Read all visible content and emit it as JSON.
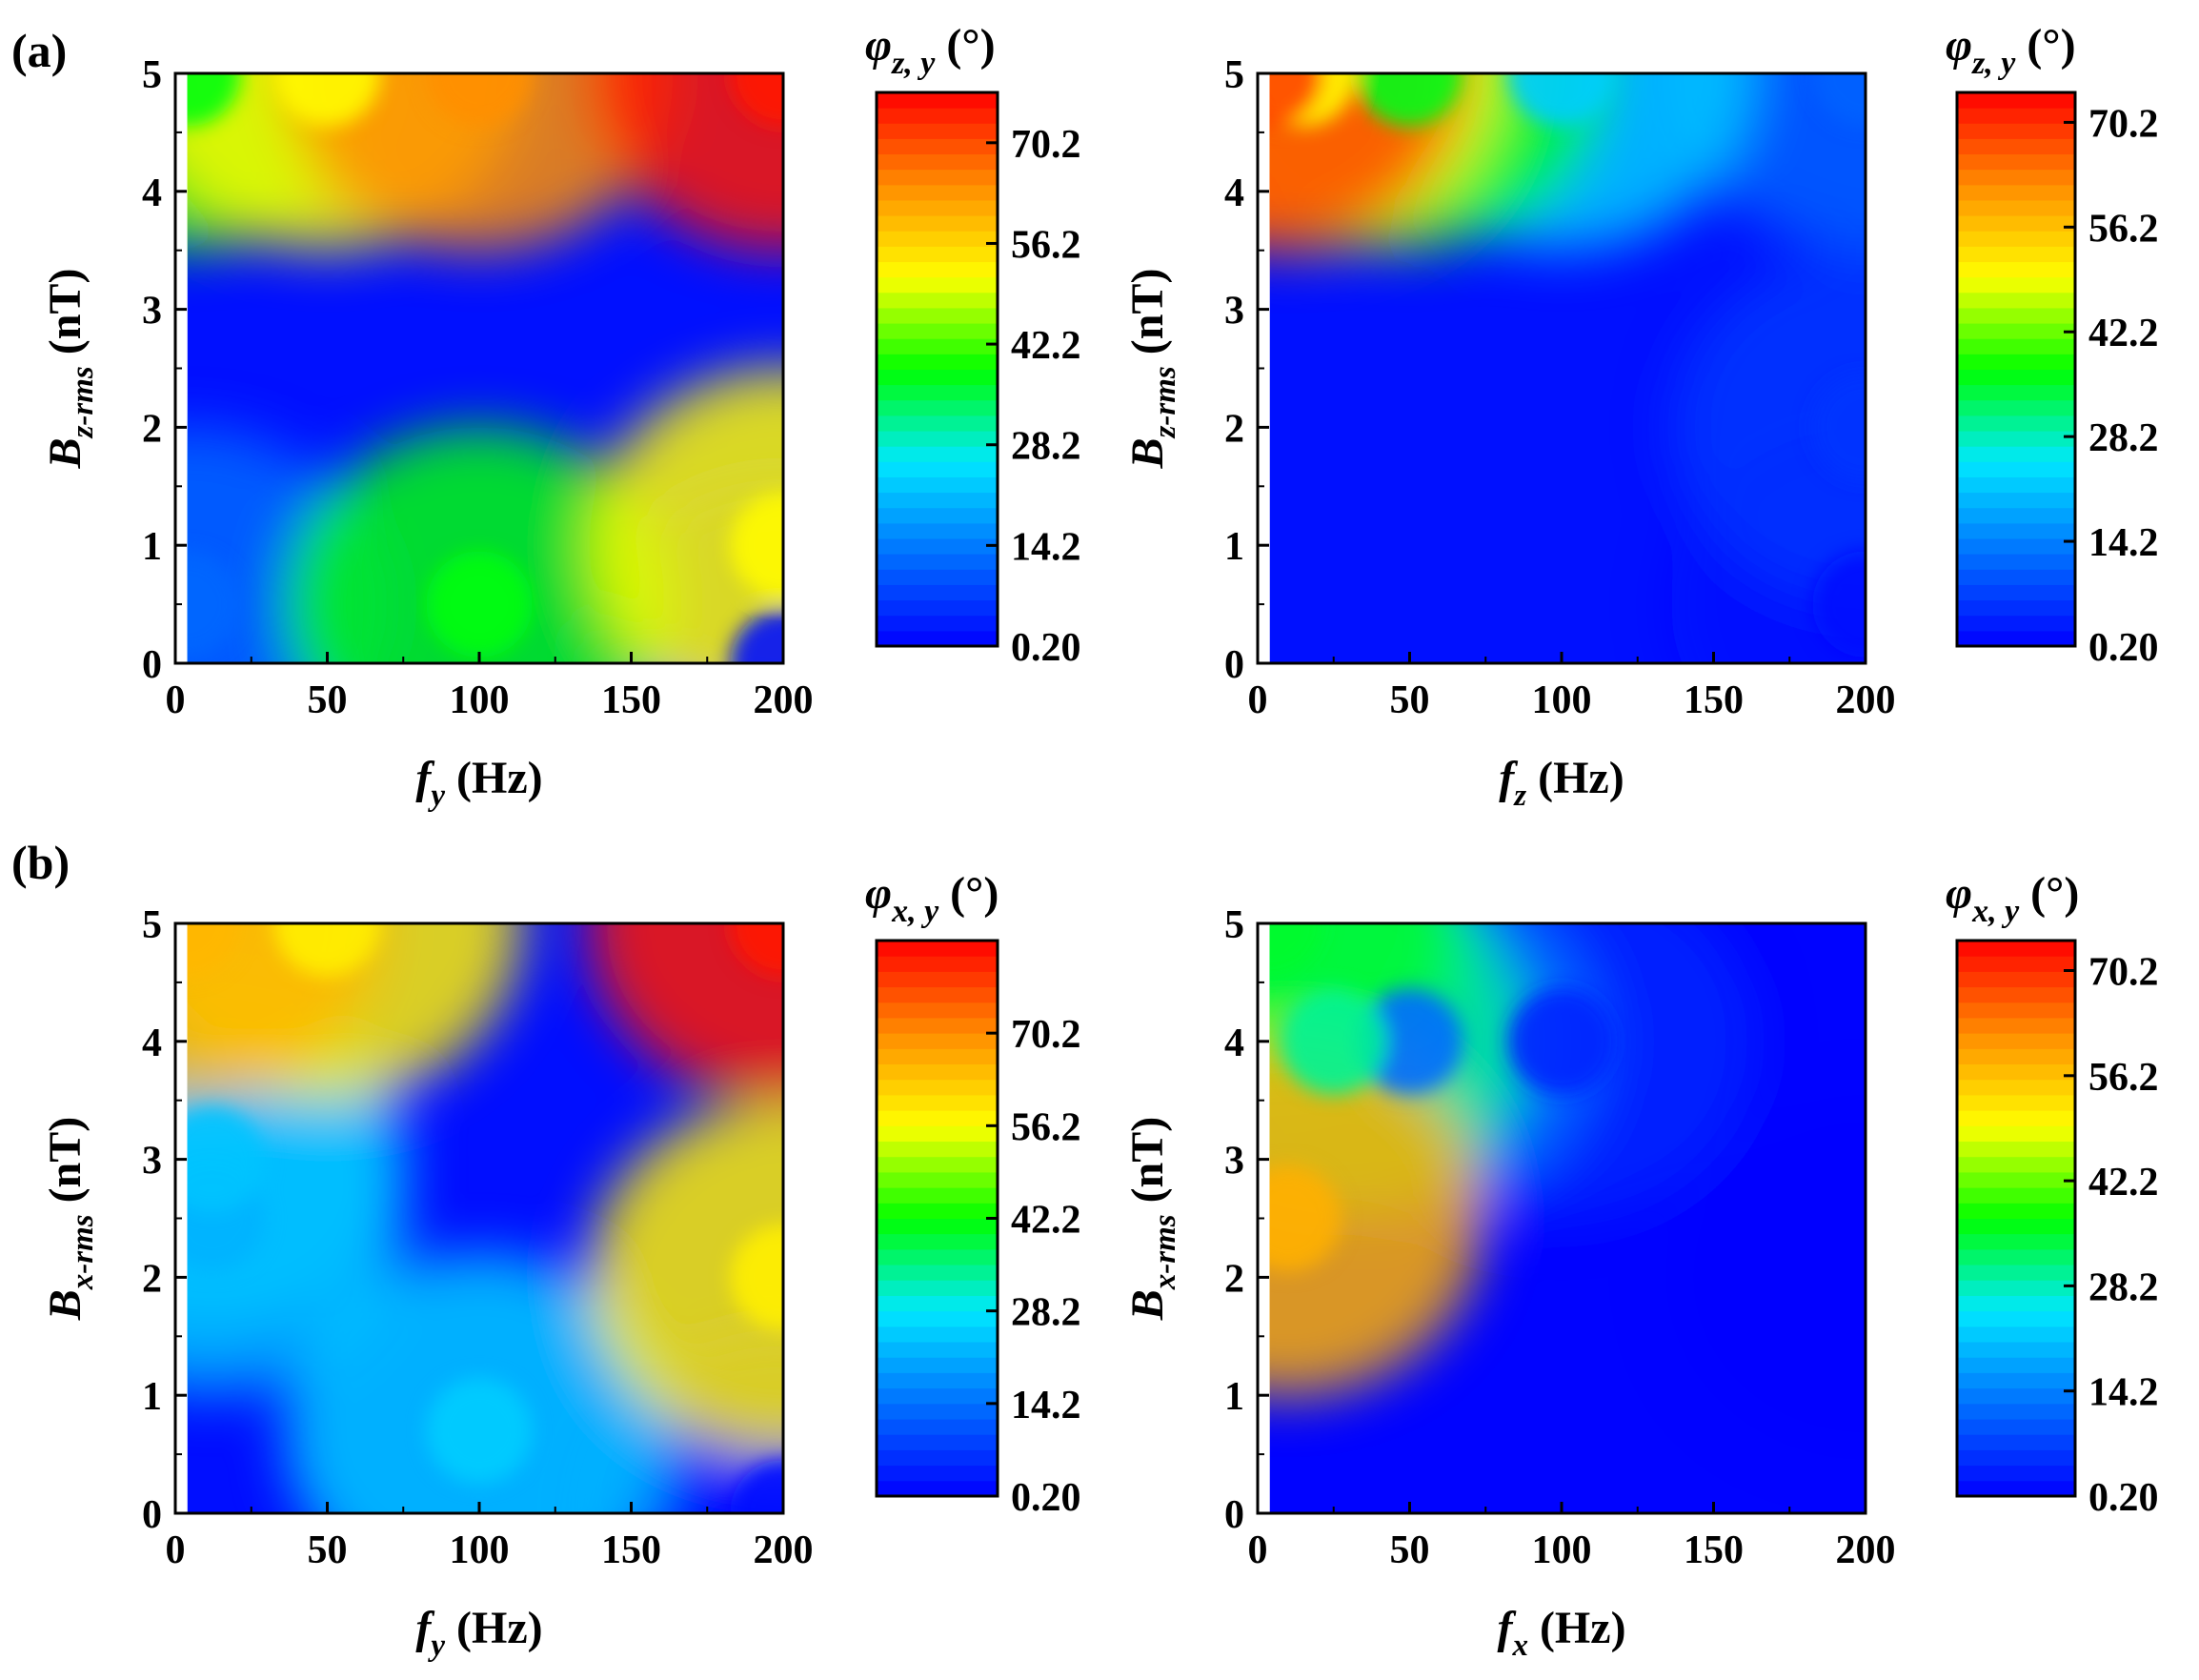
{
  "figure": {
    "panel_labels": [
      "(a)",
      "(b)"
    ]
  },
  "colormap": [
    "#0000ff",
    "#0070ff",
    "#00e8ff",
    "#00ff00",
    "#ffff00",
    "#ff8c00",
    "#ff0000"
  ],
  "chart_data": [
    {
      "type": "heatmap",
      "panel": "(a)",
      "position": "top-left",
      "x_label": {
        "main": "f",
        "sub": "y",
        "unit": " (Hz)"
      },
      "y_label": {
        "main": "B",
        "sub": "z-rms",
        "unit": " (nT)"
      },
      "colorbar_label": {
        "main": "φ",
        "sub": "z, y",
        "unit": " (°)"
      },
      "xlim": [
        0,
        200
      ],
      "ylim": [
        0,
        5
      ],
      "x_ticks": [
        "0",
        "50",
        "100",
        "150",
        "200"
      ],
      "y_ticks": [
        "0",
        "1",
        "2",
        "3",
        "4",
        "5"
      ],
      "colorbar_range": [
        0.2,
        77.2
      ],
      "colorbar_ticks": [
        "0.20",
        "14.2",
        "28.2",
        "42.2",
        "56.2",
        "70.2"
      ],
      "colorbar_tick_values": [
        0.2,
        14.2,
        28.2,
        42.2,
        56.2,
        70.2
      ],
      "levels": 36,
      "x_start": 4,
      "sample_values": [
        {
          "x": 4,
          "y": 5,
          "z": 38
        },
        {
          "x": 50,
          "y": 5,
          "z": 52
        },
        {
          "x": 100,
          "y": 5,
          "z": 64
        },
        {
          "x": 200,
          "y": 5,
          "z": 75
        },
        {
          "x": 200,
          "y": 1,
          "z": 52
        },
        {
          "x": 100,
          "y": 0.5,
          "z": 38
        },
        {
          "x": 4,
          "y": 0.5,
          "z": 12
        },
        {
          "x": 200,
          "y": 0,
          "z": 2
        }
      ]
    },
    {
      "type": "heatmap",
      "position": "top-right",
      "x_label": {
        "main": "f",
        "sub": "z",
        "unit": " (Hz)"
      },
      "y_label": {
        "main": "B",
        "sub": "z-rms",
        "unit": " (nT)"
      },
      "colorbar_label": {
        "main": "φ",
        "sub": "z, y",
        "unit": " (°)"
      },
      "xlim": [
        0,
        200
      ],
      "ylim": [
        0,
        5
      ],
      "x_ticks": [
        "0",
        "50",
        "100",
        "150",
        "200"
      ],
      "y_ticks": [
        "0",
        "1",
        "2",
        "3",
        "4",
        "5"
      ],
      "colorbar_range": [
        0.2,
        74.2
      ],
      "colorbar_ticks": [
        "0.20",
        "14.2",
        "28.2",
        "42.2",
        "56.2",
        "70.2"
      ],
      "colorbar_tick_values": [
        0.2,
        14.2,
        28.2,
        42.2,
        56.2,
        70.2
      ],
      "levels": 36,
      "x_start": 4,
      "sample_values": [
        {
          "x": 4,
          "y": 5,
          "z": 68
        },
        {
          "x": 15,
          "y": 5,
          "z": 50
        },
        {
          "x": 50,
          "y": 5,
          "z": 36
        },
        {
          "x": 100,
          "y": 5,
          "z": 22
        },
        {
          "x": 200,
          "y": 5,
          "z": 11
        },
        {
          "x": 200,
          "y": 2,
          "z": 6
        },
        {
          "x": 200,
          "y": 0.5,
          "z": 2
        }
      ]
    },
    {
      "type": "heatmap",
      "panel": "(b)",
      "position": "bottom-left",
      "x_label": {
        "main": "f",
        "sub": "y",
        "unit": " (Hz)"
      },
      "y_label": {
        "main": "B",
        "sub": "x-rms",
        "unit": " (nT)"
      },
      "colorbar_label": {
        "main": "φ",
        "sub": "x, y",
        "unit": " (°)"
      },
      "xlim": [
        0,
        200
      ],
      "ylim": [
        0,
        5
      ],
      "x_ticks": [
        "0",
        "50",
        "100",
        "150",
        "200"
      ],
      "y_ticks": [
        "0",
        "1",
        "2",
        "3",
        "4",
        "5"
      ],
      "colorbar_range": [
        0.2,
        84.2
      ],
      "colorbar_ticks": [
        "0.20",
        "14.2",
        "28.2",
        "42.2",
        "56.2",
        "70.2"
      ],
      "colorbar_tick_values": [
        0.2,
        14.2,
        28.2,
        42.2,
        56.2,
        70.2
      ],
      "levels": 36,
      "x_start": 4,
      "sample_values": [
        {
          "x": 4,
          "y": 5,
          "z": 65
        },
        {
          "x": 12,
          "y": 3,
          "z": 24
        },
        {
          "x": 12,
          "y": 2.5,
          "z": 22
        },
        {
          "x": 50,
          "y": 5,
          "z": 58
        },
        {
          "x": 200,
          "y": 5,
          "z": 82
        },
        {
          "x": 200,
          "y": 2,
          "z": 58
        },
        {
          "x": 100,
          "y": 0.7,
          "z": 25
        },
        {
          "x": 200,
          "y": 0,
          "z": 2
        }
      ]
    },
    {
      "type": "heatmap",
      "position": "bottom-right",
      "x_label": {
        "main": "f",
        "sub": "x",
        "unit": " (Hz)"
      },
      "y_label": {
        "main": "B",
        "sub": "x-rms",
        "unit": " (nT)"
      },
      "colorbar_label": {
        "main": "φ",
        "sub": "x, y",
        "unit": " (°)"
      },
      "xlim": [
        0,
        200
      ],
      "ylim": [
        0,
        5
      ],
      "x_ticks": [
        "0",
        "50",
        "100",
        "150",
        "200"
      ],
      "y_ticks": [
        "0",
        "1",
        "2",
        "3",
        "4",
        "5"
      ],
      "colorbar_range": [
        0.2,
        74.2
      ],
      "colorbar_ticks": [
        "0.20",
        "14.2",
        "28.2",
        "42.2",
        "56.2",
        "70.2"
      ],
      "colorbar_tick_values": [
        0.2,
        14.2,
        28.2,
        42.2,
        56.2,
        70.2
      ],
      "levels": 36,
      "x_start": 4,
      "sample_values": [
        {
          "x": 10,
          "y": 2.5,
          "z": 58
        },
        {
          "x": 4,
          "y": 5,
          "z": 35
        },
        {
          "x": 25,
          "y": 4,
          "z": 30
        },
        {
          "x": 50,
          "y": 4,
          "z": 12
        },
        {
          "x": 100,
          "y": 4,
          "z": 4
        },
        {
          "x": 200,
          "y": 2,
          "z": 0.5
        }
      ]
    }
  ]
}
